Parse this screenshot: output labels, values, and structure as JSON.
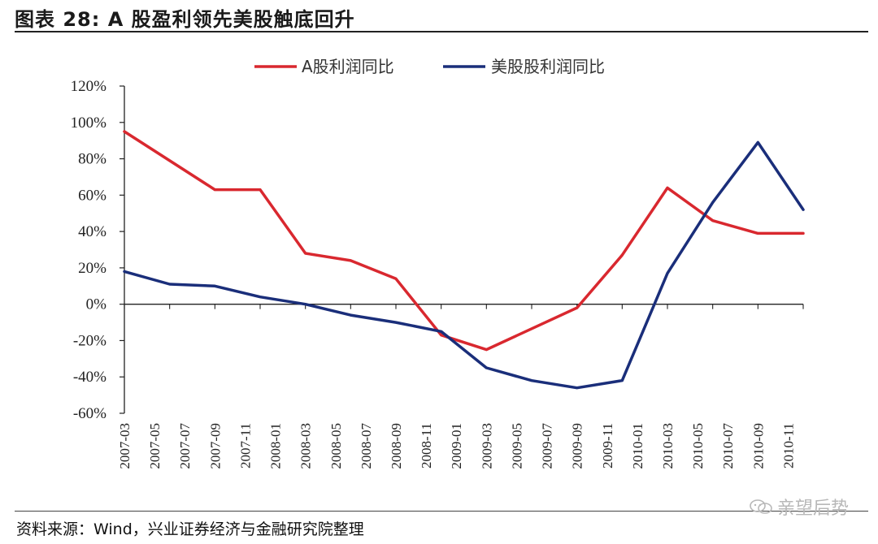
{
  "header": {
    "title": "图表 28:  A 股盈利领先美股触底回升"
  },
  "footer": {
    "source": "资料来源：Wind，兴业证券经济与金融研究院整理",
    "watermark": "亲望后势"
  },
  "chart_data": {
    "type": "line",
    "title": "",
    "xlabel": "",
    "ylabel": "",
    "ylim": [
      -60,
      120
    ],
    "yticks": [
      -60,
      -40,
      -20,
      0,
      20,
      40,
      60,
      80,
      100,
      120
    ],
    "ytick_labels": [
      "-60%",
      "-40%",
      "-20%",
      "0%",
      "20%",
      "40%",
      "60%",
      "80%",
      "100%",
      "120%"
    ],
    "x_labels": [
      "2007-03",
      "2007-05",
      "2007-07",
      "2007-09",
      "2007-11",
      "2008-01",
      "2008-03",
      "2008-05",
      "2008-07",
      "2008-09",
      "2008-11",
      "2009-01",
      "2009-03",
      "2009-05",
      "2009-07",
      "2009-09",
      "2009-11",
      "2010-01",
      "2010-03",
      "2010-05",
      "2010-07",
      "2010-09",
      "2010-11"
    ],
    "x_start": "2007-03",
    "x_end": "2010-12",
    "grid": false,
    "legend_position": "top",
    "series": [
      {
        "name": "A股利润同比",
        "color": "#d9282f",
        "points": [
          {
            "x": "2007-03",
            "y": 95
          },
          {
            "x": "2007-09",
            "y": 63
          },
          {
            "x": "2007-12",
            "y": 63
          },
          {
            "x": "2008-03",
            "y": 28
          },
          {
            "x": "2008-06",
            "y": 24
          },
          {
            "x": "2008-09",
            "y": 14
          },
          {
            "x": "2008-12",
            "y": -17
          },
          {
            "x": "2009-03",
            "y": -25
          },
          {
            "x": "2009-09",
            "y": -2
          },
          {
            "x": "2009-12",
            "y": 27
          },
          {
            "x": "2010-03",
            "y": 64
          },
          {
            "x": "2010-06",
            "y": 46
          },
          {
            "x": "2010-09",
            "y": 39
          },
          {
            "x": "2010-12",
            "y": 39
          }
        ]
      },
      {
        "name": "美股股利润同比",
        "color": "#1a2e7a",
        "points": [
          {
            "x": "2007-03",
            "y": 18
          },
          {
            "x": "2007-06",
            "y": 11
          },
          {
            "x": "2007-09",
            "y": 10
          },
          {
            "x": "2007-12",
            "y": 4
          },
          {
            "x": "2008-03",
            "y": 0
          },
          {
            "x": "2008-06",
            "y": -6
          },
          {
            "x": "2008-09",
            "y": -10
          },
          {
            "x": "2008-12",
            "y": -15
          },
          {
            "x": "2009-03",
            "y": -35
          },
          {
            "x": "2009-06",
            "y": -42
          },
          {
            "x": "2009-09",
            "y": -46
          },
          {
            "x": "2009-12",
            "y": -42
          },
          {
            "x": "2010-03",
            "y": 17
          },
          {
            "x": "2010-06",
            "y": 56
          },
          {
            "x": "2010-09",
            "y": 89
          },
          {
            "x": "2010-12",
            "y": 52
          }
        ]
      }
    ]
  }
}
